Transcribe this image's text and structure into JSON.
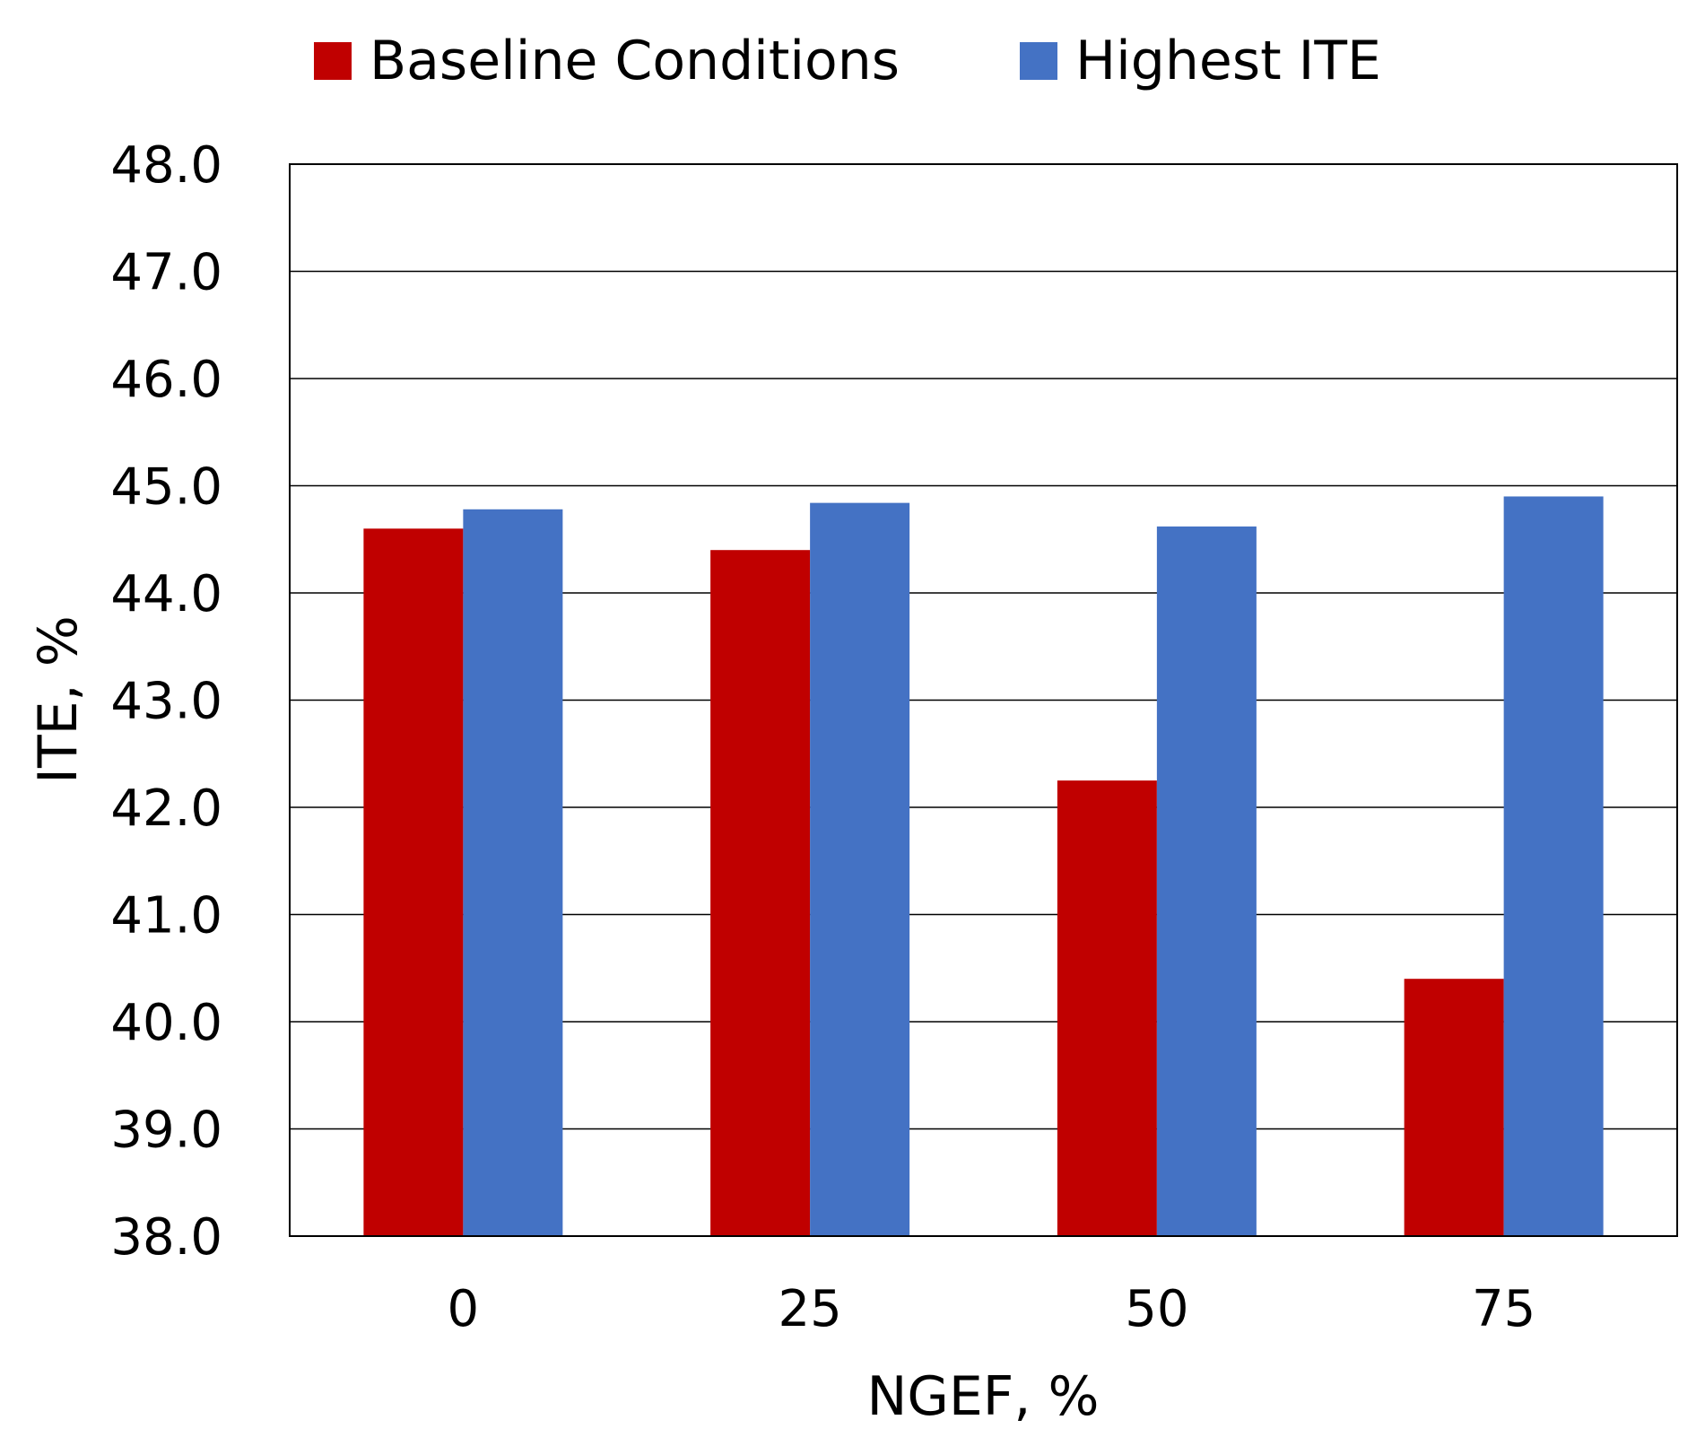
{
  "chart_data": {
    "type": "bar",
    "title": "",
    "xlabel": "NGEF, %",
    "ylabel": "ITE, %",
    "categories": [
      "0",
      "25",
      "50",
      "75"
    ],
    "series": [
      {
        "name": "Baseline Conditions",
        "color": "#C00000",
        "values": [
          44.6,
          44.4,
          42.25,
          40.4
        ]
      },
      {
        "name": "Highest ITE",
        "color": "#4472C4",
        "values": [
          44.78,
          44.84,
          44.62,
          44.9
        ]
      }
    ],
    "ylim": [
      38.0,
      48.0
    ],
    "yticks": [
      "38.0",
      "39.0",
      "40.0",
      "41.0",
      "42.0",
      "43.0",
      "44.0",
      "45.0",
      "46.0",
      "47.0",
      "48.0"
    ],
    "grid": true,
    "legend_position": "top"
  }
}
